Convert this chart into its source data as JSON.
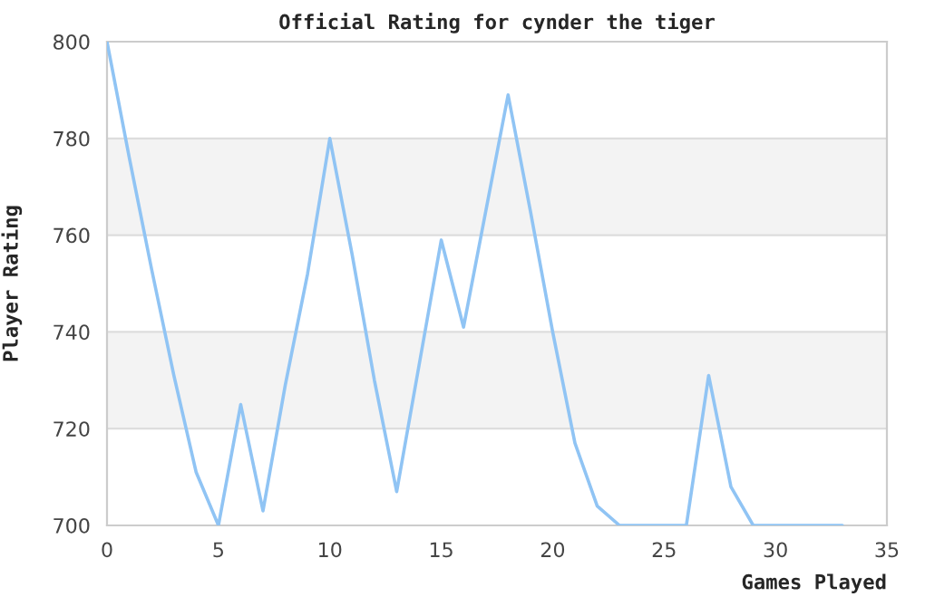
{
  "chart_data": {
    "type": "line",
    "title": "Official Rating for cynder the tiger",
    "xlabel": "Games Played",
    "ylabel": "Player Rating",
    "x": [
      0,
      1,
      2,
      3,
      4,
      5,
      6,
      7,
      8,
      9,
      10,
      11,
      12,
      13,
      14,
      15,
      16,
      17,
      18,
      19,
      20,
      21,
      22,
      23,
      24,
      25,
      26,
      27,
      28,
      29,
      30,
      31,
      32,
      33
    ],
    "series": [
      {
        "color": "#90c4f4",
        "values": [
          800,
          776,
          753,
          731,
          711,
          700,
          725,
          703,
          729,
          752,
          780,
          756,
          730,
          707,
          733,
          759,
          741,
          765,
          789,
          765,
          740,
          717,
          704,
          700,
          700,
          700,
          700,
          731,
          708,
          700,
          700,
          700,
          700,
          700
        ]
      }
    ],
    "xlim": [
      0,
      35
    ],
    "xticks": [
      0,
      5,
      10,
      15,
      20,
      25,
      30,
      35
    ],
    "ylim": [
      700,
      800
    ],
    "yticks": [
      700,
      720,
      740,
      760,
      780,
      800
    ],
    "bands": [
      {
        "axis": "y",
        "from": 720,
        "to": 740,
        "color": "#f3f3f3"
      },
      {
        "axis": "y",
        "from": 760,
        "to": 780,
        "color": "#f3f3f3"
      }
    ],
    "grid": "y",
    "legend": false,
    "marker": "none",
    "line_style": "solid"
  }
}
